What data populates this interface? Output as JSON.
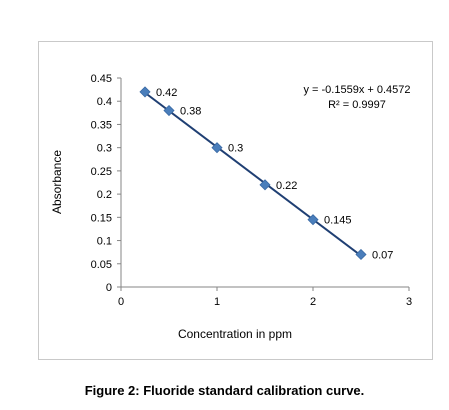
{
  "chart_data": {
    "type": "scatter",
    "title": "",
    "xlabel": "Concentration in ppm",
    "ylabel": "Absorbance",
    "xlim": [
      0,
      3
    ],
    "ylim": [
      0,
      0.45
    ],
    "x_ticks": [
      "0",
      "1",
      "2",
      "3"
    ],
    "y_ticks": [
      "0",
      "0.05",
      "0.1",
      "0.15",
      "0.2",
      "0.25",
      "0.3",
      "0.35",
      "0.4",
      "0.45"
    ],
    "series": [
      {
        "x": [
          0.25,
          0.5,
          1.0,
          1.5,
          2.0,
          2.5
        ],
        "y": [
          0.42,
          0.38,
          0.3,
          0.22,
          0.145,
          0.07
        ],
        "data_labels": [
          "0.42",
          "0.38",
          "0.3",
          "0.22",
          "0.145",
          "0.07"
        ],
        "marker": "diamond",
        "color": "#4a7ebb"
      }
    ],
    "trendline": {
      "type": "linear",
      "slope": -0.1559,
      "intercept": 0.4572,
      "color": "#1f3f73",
      "equation": "y = -0.1559x + 0.4572",
      "r_squared": "R² = 0.9997"
    },
    "grid": false,
    "legend": "none"
  },
  "caption": "Figure 2: Fluoride standard calibration curve."
}
